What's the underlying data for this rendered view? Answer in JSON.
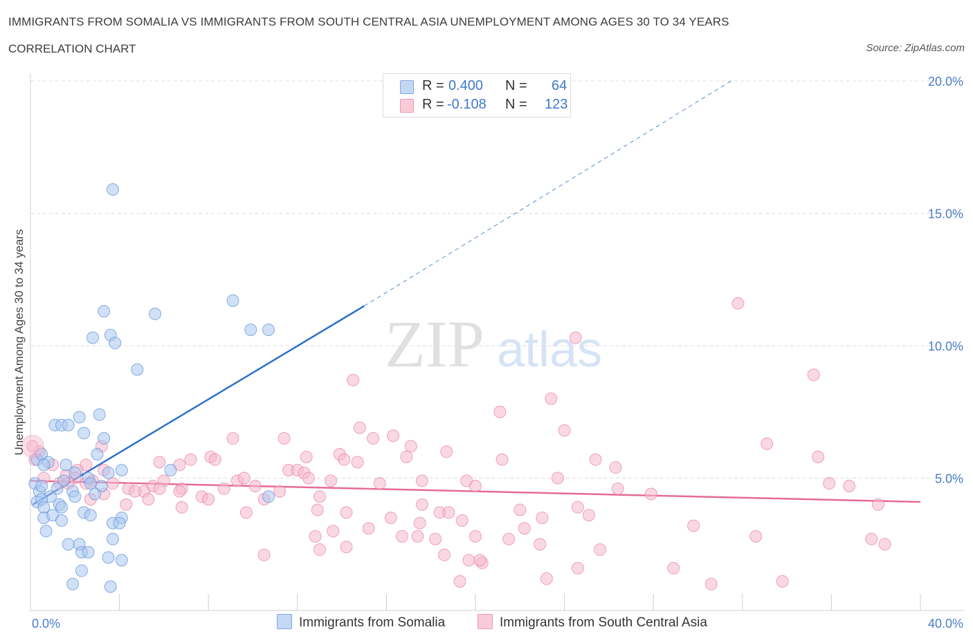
{
  "header": {
    "title": "IMMIGRANTS FROM SOMALIA VS IMMIGRANTS FROM SOUTH CENTRAL ASIA UNEMPLOYMENT AMONG AGES 30 TO 34 YEARS",
    "subtitle": "CORRELATION CHART",
    "source": "Source: ZipAtlas.com"
  },
  "watermark": {
    "zip": "ZIP",
    "atlas": "atlas"
  },
  "legend_top": {
    "rows": [
      {
        "r_label": "R =",
        "r_value": "0.400",
        "n_label": "N =",
        "n_value": "64",
        "color": "#a9c7f0"
      },
      {
        "r_label": "R =",
        "r_value": "-0.108",
        "n_label": "N =",
        "n_value": "123",
        "color": "#f5b8cc"
      }
    ]
  },
  "legend_bottom": {
    "items": [
      {
        "label": "Immigrants from Somalia",
        "color": "#a9c7f0"
      },
      {
        "label": "Immigrants from South Central Asia",
        "color": "#f5b8cc"
      }
    ]
  },
  "colors": {
    "somalia_fill": "#a9c7f0",
    "somalia_stroke": "#5b8fd6",
    "somalia_line": "#2c6fc9",
    "sca_fill": "#f5b8cc",
    "sca_stroke": "#e77fa3",
    "sca_line": "#e56a98",
    "grid": "#dddddd",
    "tick_text": "#4a7cc9"
  },
  "chart_data": {
    "type": "scatter",
    "title": "IMMIGRANTS FROM SOMALIA VS IMMIGRANTS FROM SOUTH CENTRAL ASIA UNEMPLOYMENT AMONG AGES 30 TO 34 YEARS",
    "xlabel": "",
    "ylabel": "Unemployment Among Ages 30 to 34 years",
    "xlim": [
      0,
      40
    ],
    "ylim": [
      0,
      20
    ],
    "x_tick_labels": [
      "0.0%",
      "40.0%"
    ],
    "y_ticks": [
      5,
      10,
      15,
      20
    ],
    "y_tick_labels": [
      "5.0%",
      "10.0%",
      "15.0%",
      "20.0%"
    ],
    "grid": true,
    "legend_position": "bottom",
    "series": [
      {
        "name": "Immigrants from Somalia",
        "points": [
          [
            3.7,
            15.9
          ],
          [
            9.1,
            11.7
          ],
          [
            3.3,
            11.3
          ],
          [
            5.6,
            11.2
          ],
          [
            2.8,
            10.3
          ],
          [
            3.6,
            10.4
          ],
          [
            3.8,
            10.1
          ],
          [
            9.9,
            10.6
          ],
          [
            10.7,
            10.6
          ],
          [
            4.8,
            9.1
          ],
          [
            1.1,
            7.0
          ],
          [
            1.4,
            7.0
          ],
          [
            1.7,
            7.0
          ],
          [
            2.2,
            7.3
          ],
          [
            3.1,
            7.4
          ],
          [
            2.4,
            6.7
          ],
          [
            3.3,
            6.5
          ],
          [
            3.0,
            5.9
          ],
          [
            0.3,
            5.7
          ],
          [
            0.5,
            5.9
          ],
          [
            0.8,
            5.6
          ],
          [
            0.6,
            5.5
          ],
          [
            4.1,
            5.3
          ],
          [
            6.3,
            5.3
          ],
          [
            2.0,
            5.2
          ],
          [
            2.6,
            5.0
          ],
          [
            3.5,
            5.2
          ],
          [
            1.5,
            4.9
          ],
          [
            1.2,
            4.6
          ],
          [
            1.9,
            4.5
          ],
          [
            2.0,
            4.3
          ],
          [
            2.7,
            4.8
          ],
          [
            3.2,
            4.7
          ],
          [
            0.2,
            4.8
          ],
          [
            0.4,
            4.5
          ],
          [
            0.9,
            4.3
          ],
          [
            0.3,
            4.1
          ],
          [
            0.5,
            4.2
          ],
          [
            0.6,
            3.9
          ],
          [
            1.3,
            4.0
          ],
          [
            1.4,
            3.9
          ],
          [
            10.7,
            4.3
          ],
          [
            0.6,
            3.5
          ],
          [
            1.0,
            3.6
          ],
          [
            1.4,
            3.4
          ],
          [
            2.4,
            3.7
          ],
          [
            2.7,
            3.6
          ],
          [
            3.7,
            3.3
          ],
          [
            4.1,
            3.5
          ],
          [
            4.0,
            3.3
          ],
          [
            0.7,
            3.0
          ],
          [
            3.7,
            2.7
          ],
          [
            1.7,
            2.5
          ],
          [
            2.2,
            2.5
          ],
          [
            2.3,
            2.2
          ],
          [
            2.6,
            2.2
          ],
          [
            3.5,
            2.0
          ],
          [
            4.1,
            1.9
          ],
          [
            2.3,
            1.5
          ],
          [
            1.9,
            1.0
          ],
          [
            3.6,
            0.9
          ],
          [
            0.5,
            4.7
          ],
          [
            1.6,
            5.5
          ],
          [
            2.9,
            4.4
          ]
        ]
      },
      {
        "name": "Immigrants from South Central Asia",
        "points": [
          [
            31.8,
            11.6
          ],
          [
            24.5,
            10.3
          ],
          [
            35.2,
            8.9
          ],
          [
            14.5,
            8.7
          ],
          [
            23.4,
            8.0
          ],
          [
            21.1,
            7.5
          ],
          [
            14.8,
            6.9
          ],
          [
            11.4,
            6.5
          ],
          [
            16.3,
            6.6
          ],
          [
            24.0,
            6.8
          ],
          [
            9.1,
            6.5
          ],
          [
            15.4,
            6.5
          ],
          [
            17.1,
            6.2
          ],
          [
            33.1,
            6.3
          ],
          [
            18.7,
            6.0
          ],
          [
            12.4,
            5.8
          ],
          [
            13.9,
            5.9
          ],
          [
            16.9,
            5.8
          ],
          [
            7.2,
            5.7
          ],
          [
            8.1,
            5.8
          ],
          [
            8.3,
            5.7
          ],
          [
            14.1,
            5.7
          ],
          [
            21.2,
            5.7
          ],
          [
            25.4,
            5.7
          ],
          [
            35.4,
            5.8
          ],
          [
            6.7,
            5.5
          ],
          [
            5.8,
            5.6
          ],
          [
            2.5,
            5.5
          ],
          [
            11.6,
            5.3
          ],
          [
            12.0,
            5.3
          ],
          [
            1.0,
            5.5
          ],
          [
            0.4,
            6.0
          ],
          [
            0.2,
            5.7
          ],
          [
            26.3,
            5.4
          ],
          [
            14.7,
            5.6
          ],
          [
            1.6,
            5.1
          ],
          [
            2.1,
            5.3
          ],
          [
            12.3,
            5.2
          ],
          [
            6.0,
            4.9
          ],
          [
            9.3,
            4.9
          ],
          [
            9.6,
            5.0
          ],
          [
            12.5,
            5.0
          ],
          [
            13.5,
            4.9
          ],
          [
            17.6,
            4.9
          ],
          [
            19.6,
            4.9
          ],
          [
            23.7,
            5.0
          ],
          [
            2.5,
            4.8
          ],
          [
            3.7,
            4.8
          ],
          [
            5.5,
            4.7
          ],
          [
            6.8,
            4.6
          ],
          [
            10.1,
            4.7
          ],
          [
            11.2,
            4.5
          ],
          [
            15.7,
            4.8
          ],
          [
            20.0,
            4.7
          ],
          [
            35.9,
            4.8
          ],
          [
            4.4,
            4.6
          ],
          [
            5.1,
            4.5
          ],
          [
            8.7,
            4.6
          ],
          [
            26.4,
            4.6
          ],
          [
            36.8,
            4.7
          ],
          [
            3.3,
            4.4
          ],
          [
            4.7,
            4.5
          ],
          [
            5.3,
            4.2
          ],
          [
            6.7,
            4.5
          ],
          [
            7.7,
            4.3
          ],
          [
            8.0,
            4.2
          ],
          [
            10.5,
            4.2
          ],
          [
            13.0,
            4.3
          ],
          [
            17.6,
            4.0
          ],
          [
            27.9,
            4.4
          ],
          [
            4.3,
            4.0
          ],
          [
            6.8,
            3.9
          ],
          [
            12.9,
            3.8
          ],
          [
            18.4,
            3.7
          ],
          [
            24.6,
            3.9
          ],
          [
            2.7,
            4.2
          ],
          [
            9.7,
            3.7
          ],
          [
            14.2,
            3.7
          ],
          [
            18.8,
            3.7
          ],
          [
            22.0,
            3.8
          ],
          [
            22.2,
            3.1
          ],
          [
            25.1,
            3.6
          ],
          [
            38.1,
            4.0
          ],
          [
            16.2,
            3.5
          ],
          [
            17.5,
            3.3
          ],
          [
            19.4,
            3.4
          ],
          [
            23.0,
            3.5
          ],
          [
            29.8,
            3.2
          ],
          [
            12.8,
            2.8
          ],
          [
            13.6,
            3.0
          ],
          [
            15.2,
            3.1
          ],
          [
            16.7,
            2.8
          ],
          [
            17.4,
            2.8
          ],
          [
            18.2,
            2.7
          ],
          [
            20.0,
            2.8
          ],
          [
            21.5,
            2.7
          ],
          [
            22.9,
            2.5
          ],
          [
            14.2,
            2.4
          ],
          [
            25.6,
            2.3
          ],
          [
            37.8,
            2.7
          ],
          [
            32.6,
            2.8
          ],
          [
            13.0,
            2.3
          ],
          [
            18.6,
            2.1
          ],
          [
            10.5,
            2.1
          ],
          [
            19.7,
            1.9
          ],
          [
            20.3,
            1.8
          ],
          [
            24.6,
            1.6
          ],
          [
            20.2,
            1.9
          ],
          [
            30.6,
            1.0
          ],
          [
            23.2,
            1.2
          ],
          [
            28.9,
            1.6
          ],
          [
            19.3,
            1.1
          ],
          [
            33.8,
            1.1
          ],
          [
            38.4,
            2.5
          ],
          [
            0.6,
            5.0
          ],
          [
            1.3,
            4.8
          ],
          [
            3.2,
            6.2
          ],
          [
            2.0,
            5.0
          ],
          [
            0.1,
            6.2
          ],
          [
            1.7,
            4.8
          ],
          [
            5.8,
            4.6
          ],
          [
            2.8,
            4.9
          ],
          [
            3.3,
            5.3
          ]
        ]
      }
    ],
    "trend_lines": [
      {
        "series": "Immigrants from Somalia",
        "solid_from": [
          0.1,
          4.0
        ],
        "solid_to": [
          15.0,
          11.5
        ],
        "dashed_to": [
          31.5,
          20.0
        ]
      },
      {
        "series": "Immigrants from South Central Asia",
        "from": [
          0.0,
          4.9
        ],
        "to": [
          40.0,
          4.1
        ]
      }
    ]
  }
}
